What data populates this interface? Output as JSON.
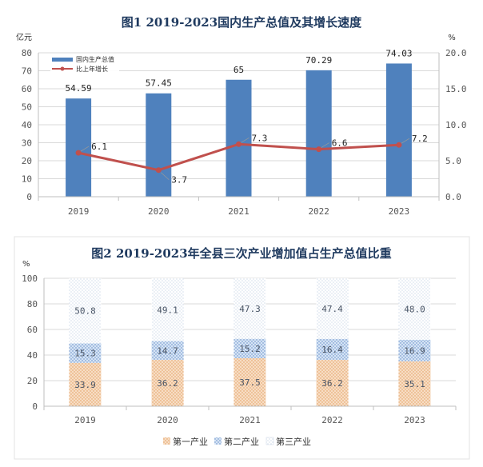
{
  "colors": {
    "bar": "#4f81bd",
    "line": "#c0504d",
    "grid": "#d9d9d9",
    "primary": "#f0c8a0",
    "secondary": "#a9c4e8",
    "tertiary": "#c7d6ea"
  },
  "chart_data": [
    {
      "type": "bar",
      "title": "图1    2019-2023国内生产总值及其增长速度",
      "categories": [
        "2019",
        "2020",
        "2021",
        "2022",
        "2023"
      ],
      "left_unit": "亿元",
      "right_unit": "%",
      "ylim": [
        0,
        80
      ],
      "y2lim": [
        0,
        20
      ],
      "y_ticks": [
        "0",
        "10",
        "20",
        "30",
        "40",
        "50",
        "60",
        "70",
        "80"
      ],
      "y2_ticks": [
        "0.0",
        "5.0",
        "10.0",
        "15.0",
        "20.0"
      ],
      "grid": true,
      "legend": "top-left",
      "series": [
        {
          "name": "国内生产总值",
          "kind": "bar",
          "axis": "left",
          "values": [
            54.59,
            57.45,
            65,
            70.29,
            74.03
          ],
          "labels": [
            "54.59",
            "57.45",
            "65",
            "70.29",
            "74.03"
          ]
        },
        {
          "name": "比上年增长",
          "kind": "line",
          "axis": "right",
          "values": [
            6.1,
            3.7,
            7.3,
            6.6,
            7.2
          ],
          "labels": [
            "6.1",
            "3.7",
            "7.3",
            "6.6",
            "7.2"
          ]
        }
      ]
    },
    {
      "type": "bar",
      "stacked": true,
      "title": "图2   2019-2023年全县三次产业增加值占生产总值比重",
      "categories": [
        "2019",
        "2020",
        "2021",
        "2022",
        "2023"
      ],
      "left_unit": "%",
      "ylim": [
        0,
        100
      ],
      "y_ticks": [
        "0",
        "20",
        "40",
        "60",
        "80",
        "100"
      ],
      "grid": true,
      "legend": "bottom",
      "series": [
        {
          "name": "第一产业",
          "values": [
            33.9,
            36.2,
            37.5,
            36.2,
            35.1
          ],
          "labels": [
            "33.9",
            "36.2",
            "37.5",
            "36.2",
            "35.1"
          ]
        },
        {
          "name": "第二产业",
          "values": [
            15.3,
            14.7,
            15.2,
            16.4,
            16.9
          ],
          "labels": [
            "15.3",
            "14.7",
            "15.2",
            "16.4",
            "16.9"
          ]
        },
        {
          "name": "第三产业",
          "values": [
            50.8,
            49.1,
            47.3,
            47.4,
            48.0
          ],
          "labels": [
            "50.8",
            "49.1",
            "47.3",
            "47.4",
            "48.0"
          ]
        }
      ]
    }
  ]
}
